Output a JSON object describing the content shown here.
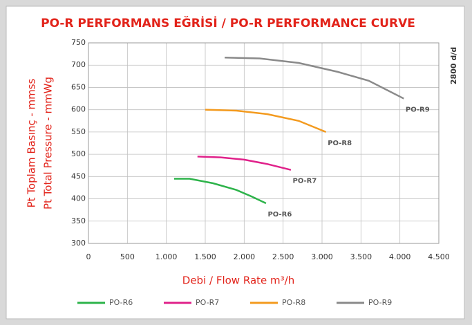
{
  "chart_data": {
    "type": "line",
    "title": "PO-R PERFORMANS EĞRİSİ / PO-R PERFORMANCE CURVE",
    "y_label_lines": [
      "Pt Toplam Basınç - mmss",
      "Pt Total Pressure - mmWg"
    ],
    "x_label": "Debi / Flow Rate m³/h",
    "side_note": "2800 d/d",
    "xlim": [
      0,
      4500
    ],
    "xticks": [
      0,
      500,
      {
        "value": 1000,
        "label": "1.000"
      },
      {
        "value": 1500,
        "label": "1.500"
      },
      {
        "value": 2000,
        "label": "2.000"
      },
      {
        "value": 2500,
        "label": "2.500"
      },
      {
        "value": 3000,
        "label": "3.000"
      },
      {
        "value": 3500,
        "label": "3.500"
      },
      {
        "value": 4000,
        "label": "4.000"
      },
      {
        "value": 4500,
        "label": "4.500"
      }
    ],
    "ylim": [
      300,
      750
    ],
    "yticks": [
      300,
      350,
      400,
      450,
      500,
      550,
      600,
      650,
      700,
      750
    ],
    "grid": true,
    "legend": "bottom",
    "series": [
      {
        "name": "PO-R6",
        "color": "#2db34a",
        "x": [
          1100,
          1300,
          1600,
          1900,
          2100,
          2280
        ],
        "values": [
          445,
          445,
          435,
          420,
          405,
          390
        ]
      },
      {
        "name": "PO-R7",
        "color": "#e0218a",
        "x": [
          1400,
          1700,
          2000,
          2300,
          2600
        ],
        "values": [
          495,
          493,
          488,
          478,
          465
        ]
      },
      {
        "name": "PO-R8",
        "color": "#f39a1e",
        "x": [
          1500,
          1900,
          2300,
          2700,
          3050
        ],
        "values": [
          600,
          598,
          590,
          575,
          550
        ]
      },
      {
        "name": "PO-R9",
        "color": "#8a8a8a",
        "x": [
          1750,
          2200,
          2700,
          3200,
          3600,
          4050
        ],
        "values": [
          717,
          715,
          705,
          685,
          665,
          625
        ]
      }
    ]
  }
}
